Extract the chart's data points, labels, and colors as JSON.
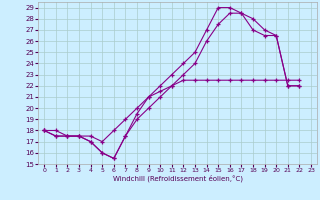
{
  "xlabel": "Windchill (Refroidissement éolien,°C)",
  "background_color": "#cceeff",
  "grid_color": "#aacccc",
  "line_color": "#880088",
  "xlim": [
    -0.5,
    23.5
  ],
  "ylim": [
    15,
    29.5
  ],
  "xticks": [
    0,
    1,
    2,
    3,
    4,
    5,
    6,
    7,
    8,
    9,
    10,
    11,
    12,
    13,
    14,
    15,
    16,
    17,
    18,
    19,
    20,
    21,
    22,
    23
  ],
  "yticks": [
    15,
    16,
    17,
    18,
    19,
    20,
    21,
    22,
    23,
    24,
    25,
    26,
    27,
    28,
    29
  ],
  "series1": [
    [
      0,
      18
    ],
    [
      1,
      18
    ],
    [
      2,
      17.5
    ],
    [
      3,
      17.5
    ],
    [
      4,
      17.5
    ],
    [
      5,
      17
    ],
    [
      6,
      18
    ],
    [
      7,
      19
    ],
    [
      8,
      20
    ],
    [
      9,
      21
    ],
    [
      10,
      21.5
    ],
    [
      11,
      22
    ],
    [
      12,
      22.5
    ],
    [
      13,
      22.5
    ],
    [
      14,
      22.5
    ],
    [
      15,
      22.5
    ],
    [
      16,
      22.5
    ],
    [
      17,
      22.5
    ],
    [
      18,
      22.5
    ],
    [
      19,
      22.5
    ],
    [
      20,
      22.5
    ],
    [
      21,
      22.5
    ],
    [
      22,
      22.5
    ]
  ],
  "series2": [
    [
      0,
      18
    ],
    [
      1,
      17.5
    ],
    [
      2,
      17.5
    ],
    [
      3,
      17.5
    ],
    [
      4,
      17
    ],
    [
      5,
      16
    ],
    [
      6,
      15.5
    ],
    [
      7,
      17.5
    ],
    [
      8,
      19.5
    ],
    [
      9,
      21
    ],
    [
      10,
      22
    ],
    [
      11,
      23
    ],
    [
      12,
      24
    ],
    [
      13,
      25
    ],
    [
      14,
      27
    ],
    [
      15,
      29
    ],
    [
      16,
      29
    ],
    [
      17,
      28.5
    ],
    [
      18,
      28
    ],
    [
      19,
      27
    ],
    [
      20,
      26.5
    ],
    [
      21,
      22
    ],
    [
      22,
      22
    ]
  ],
  "series3": [
    [
      0,
      18
    ],
    [
      1,
      17.5
    ],
    [
      2,
      17.5
    ],
    [
      3,
      17.5
    ],
    [
      4,
      17
    ],
    [
      5,
      16
    ],
    [
      6,
      15.5
    ],
    [
      7,
      17.5
    ],
    [
      8,
      19
    ],
    [
      9,
      20
    ],
    [
      10,
      21
    ],
    [
      11,
      22
    ],
    [
      12,
      23
    ],
    [
      13,
      24
    ],
    [
      14,
      26
    ],
    [
      15,
      27.5
    ],
    [
      16,
      28.5
    ],
    [
      17,
      28.5
    ],
    [
      18,
      27
    ],
    [
      19,
      26.5
    ],
    [
      20,
      26.5
    ],
    [
      21,
      22
    ],
    [
      22,
      22
    ]
  ]
}
